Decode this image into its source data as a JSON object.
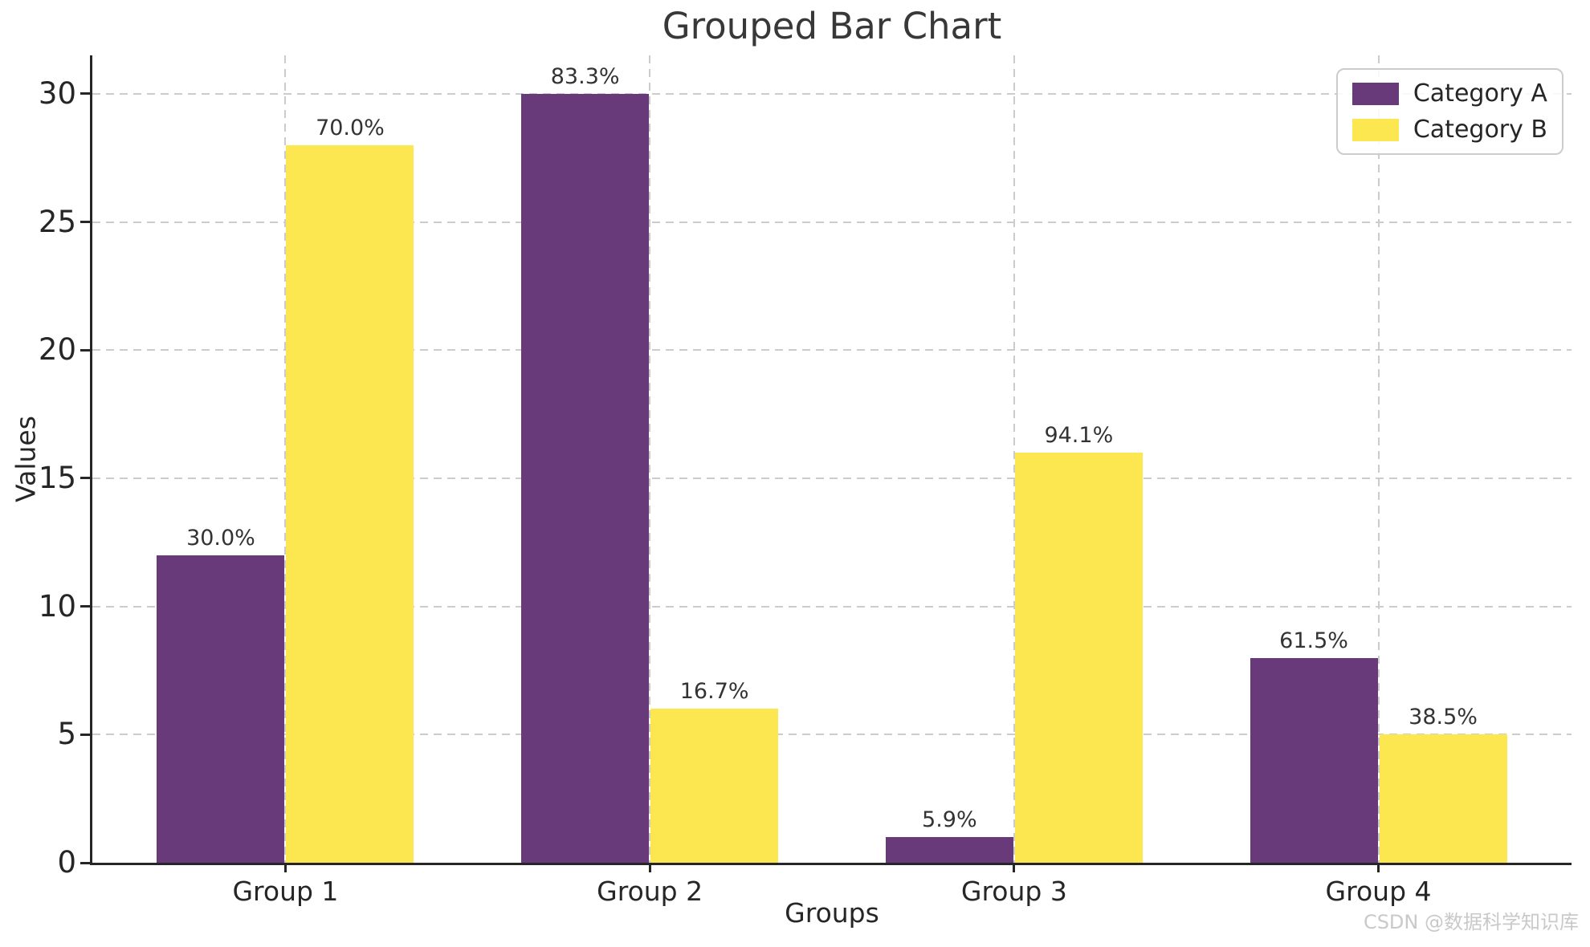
{
  "figure": {
    "watermark": "CSDN @数据科学知识库"
  },
  "chart_data": {
    "type": "bar",
    "title": "Grouped Bar Chart",
    "xlabel": "Groups",
    "ylabel": "Values",
    "categories": [
      "Group 1",
      "Group 2",
      "Group 3",
      "Group 4"
    ],
    "series": [
      {
        "name": "Category A",
        "color": "#683a7a",
        "values": [
          12,
          30,
          1,
          8
        ],
        "labels": [
          "30.0%",
          "83.3%",
          "5.9%",
          "61.5%"
        ]
      },
      {
        "name": "Category B",
        "color": "#fde750",
        "values": [
          28,
          6,
          16,
          5
        ],
        "labels": [
          "70.0%",
          "16.7%",
          "94.1%",
          "38.5%"
        ]
      }
    ],
    "ylim": [
      0,
      31.5
    ],
    "yticks": [
      0,
      5,
      10,
      15,
      20,
      25,
      30
    ],
    "bar_width_fraction": 0.35,
    "grid": "dashed, both axes",
    "legend_position": "upper right",
    "colors": {
      "grid": "#cccccc",
      "spine": "#262626",
      "text": "#333333",
      "watermark": "#c9c9c9"
    }
  }
}
